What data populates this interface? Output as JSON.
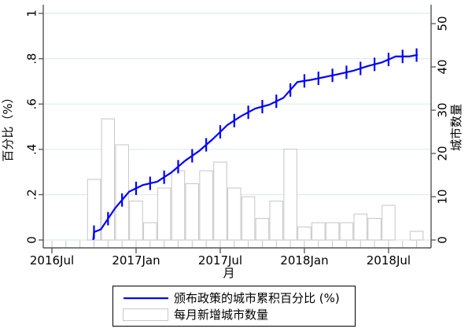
{
  "chart_data": {
    "type": "combo",
    "title": "",
    "months": [
      "2016-10",
      "2016-11",
      "2016-12",
      "2017-01",
      "2017-02",
      "2017-03",
      "2017-04",
      "2017-05",
      "2017-06",
      "2017-07",
      "2017-08",
      "2017-09",
      "2017-10",
      "2017-11",
      "2017-12",
      "2018-01",
      "2018-02",
      "2018-03",
      "2018-04",
      "2018-05",
      "2018-06",
      "2018-07",
      "2018-08",
      "2018-09"
    ],
    "bar_start_month_offset": 3,
    "series": [
      {
        "name": "颁布政策的城市累积百分比 (%)",
        "type": "line",
        "axis": "left",
        "color": "#0000ff",
        "values": [
          0.047,
          0.14,
          0.213,
          0.243,
          0.257,
          0.297,
          0.35,
          0.393,
          0.447,
          0.507,
          0.547,
          0.58,
          0.597,
          0.627,
          0.697,
          0.707,
          0.72,
          0.733,
          0.747,
          0.767,
          0.783,
          0.81,
          0.81,
          0.817
        ]
      },
      {
        "name": "每月新增城市数量",
        "type": "bar",
        "axis": "right",
        "fill": "#ffffff",
        "border": "#c6c6c6",
        "values": [
          14,
          28,
          22,
          9,
          4,
          12,
          16,
          13,
          16,
          18,
          12,
          10,
          5,
          9,
          21,
          3,
          4,
          4,
          4,
          6,
          5,
          8,
          0,
          2
        ]
      }
    ],
    "left_axis": {
      "title": "百分比（%）",
      "tick_labels": [
        "0",
        ".2",
        ".4",
        ".6",
        ".8",
        "1"
      ],
      "tick_values": [
        0,
        0.2,
        0.4,
        0.6,
        0.8,
        1
      ],
      "range": [
        0,
        1
      ]
    },
    "right_axis": {
      "title": "城市数量",
      "tick_labels": [
        "0",
        "10",
        "20",
        "30",
        "40",
        "50"
      ],
      "tick_values": [
        0,
        10,
        20,
        30,
        40,
        50
      ],
      "range": [
        0,
        50
      ]
    },
    "x_axis": {
      "title": "月",
      "start_month": "2016-07",
      "tick_labels": [
        "2016Jul",
        "2017Jan",
        "2017Jul",
        "2018Jan",
        "2018Jul"
      ],
      "tick_month_offsets": [
        0,
        6,
        12,
        18,
        24
      ],
      "minor_ticks_every_month": true
    },
    "grid": {
      "show": true,
      "orientation": "horizontal",
      "on_axis": "left"
    },
    "legend": {
      "position": "bottom-center",
      "entries": [
        {
          "swatch": "line",
          "label": "颁布政策的城市累积百分比 (%)"
        },
        {
          "swatch": "bar",
          "label": "每月新增城市数量"
        }
      ]
    },
    "colors": {
      "line": "#0000ff",
      "bar_fill": "#ffffff",
      "bar_border": "#c6c6c6",
      "grid": "#dfeaee",
      "axis": "#555555",
      "text": "#000000",
      "background": "#ffffff"
    }
  }
}
